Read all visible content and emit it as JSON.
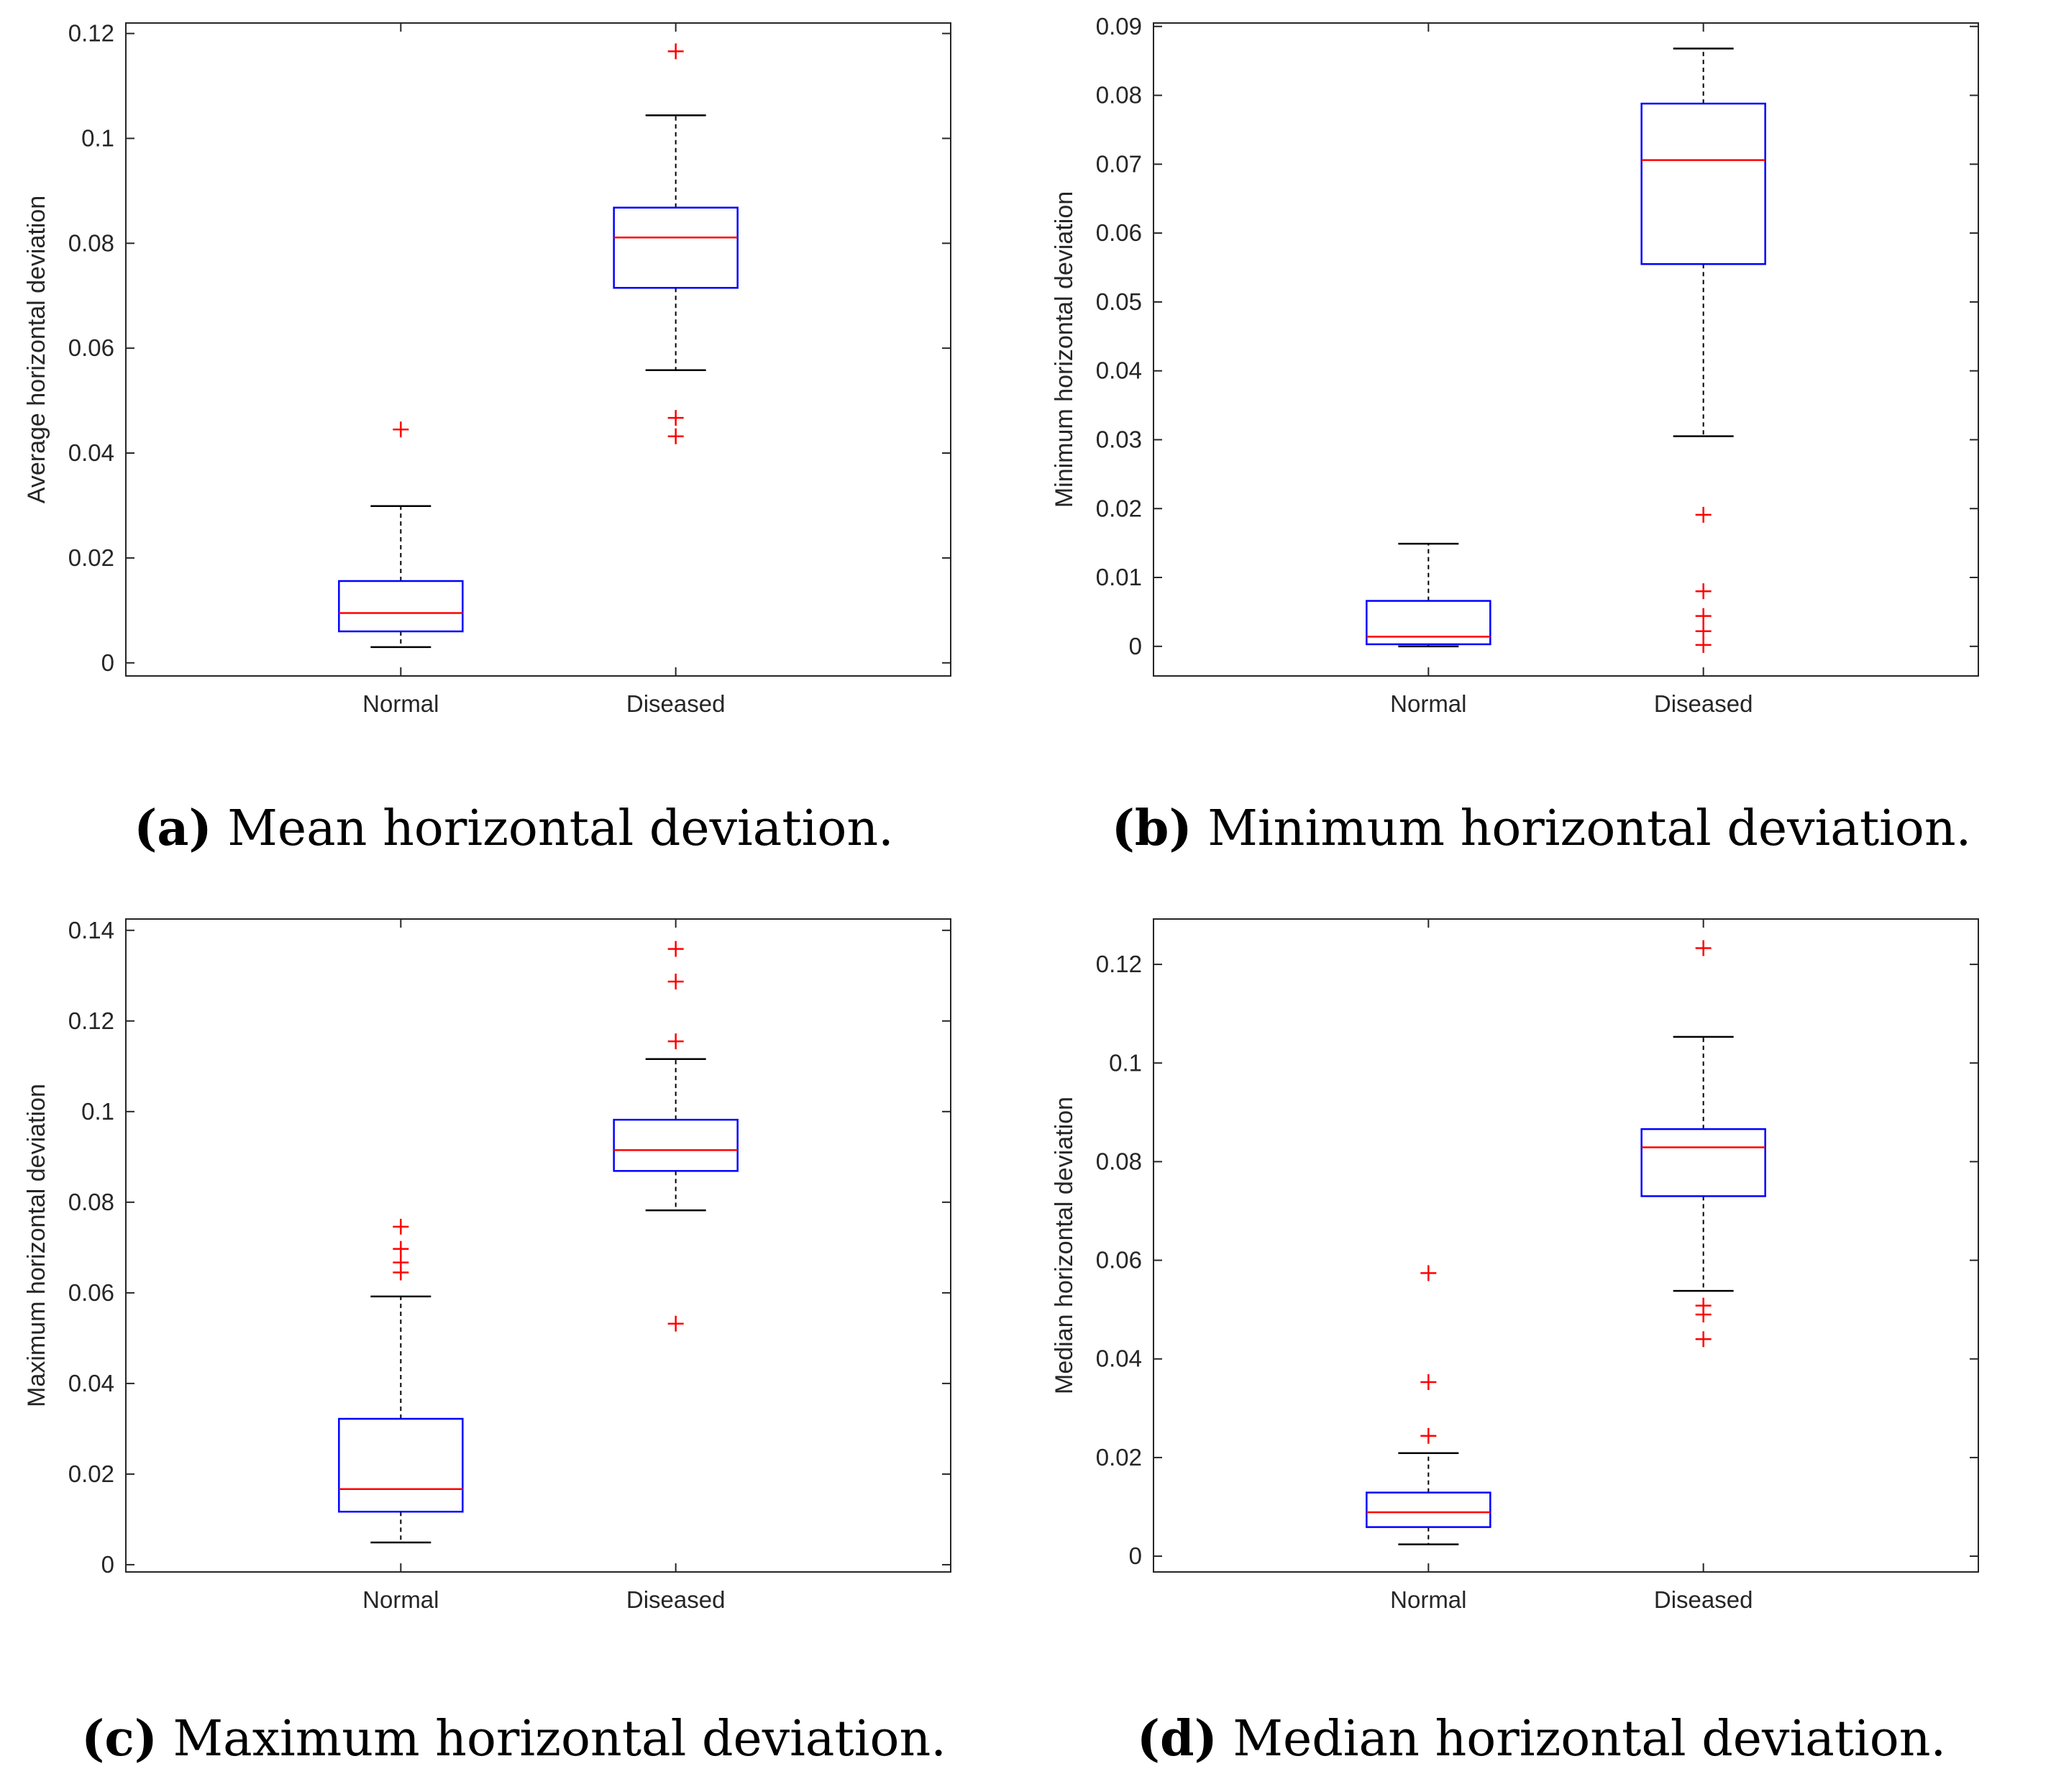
{
  "chart_data": [
    {
      "type": "boxplot",
      "panel_letter": "(a)",
      "caption": "Mean horizontal deviation.",
      "ylabel": "Average horizontal deviation",
      "xlabel": "",
      "ylim": [
        -0.0025,
        0.122
      ],
      "yticks": [
        0,
        0.02,
        0.04,
        0.06,
        0.08,
        0.1,
        0.12
      ],
      "ytick_labels": [
        "0",
        "0.02",
        "0.04",
        "0.06",
        "0.08",
        "0.1",
        "0.12"
      ],
      "categories": [
        "Normal",
        "Diseased"
      ],
      "boxes": [
        {
          "name": "Normal",
          "whisker_low": 0.003,
          "q1": 0.006,
          "median": 0.0095,
          "q3": 0.0156,
          "whisker_high": 0.0299,
          "outliers": [
            0.0445
          ]
        },
        {
          "name": "Diseased",
          "whisker_low": 0.0558,
          "q1": 0.0715,
          "median": 0.0811,
          "q3": 0.0868,
          "whisker_high": 0.1044,
          "outliers": [
            0.1166,
            0.0467,
            0.0432
          ]
        }
      ],
      "colors": {
        "box": "#0000ff",
        "median": "#ff0000",
        "outlier": "#ff0000",
        "whisker": "#000000"
      }
    },
    {
      "type": "boxplot",
      "panel_letter": "(b)",
      "caption": "Minimum horizontal deviation.",
      "ylabel": "Minimum horizontal deviation",
      "xlabel": "",
      "ylim": [
        -0.0043,
        0.0905
      ],
      "yticks": [
        0,
        0.01,
        0.02,
        0.03,
        0.04,
        0.05,
        0.06,
        0.07,
        0.08,
        0.09
      ],
      "ytick_labels": [
        "0",
        "0.01",
        "0.02",
        "0.03",
        "0.04",
        "0.05",
        "0.06",
        "0.07",
        "0.08",
        "0.09"
      ],
      "categories": [
        "Normal",
        "Diseased"
      ],
      "boxes": [
        {
          "name": "Normal",
          "whisker_low": 0.0,
          "q1": 0.0003,
          "median": 0.0014,
          "q3": 0.0066,
          "whisker_high": 0.0149,
          "outliers": []
        },
        {
          "name": "Diseased",
          "whisker_low": 0.0305,
          "q1": 0.0555,
          "median": 0.0706,
          "q3": 0.0788,
          "whisker_high": 0.0868,
          "outliers": [
            0.0191,
            0.008,
            0.0044,
            0.0022,
            0.0002
          ]
        }
      ],
      "colors": {
        "box": "#0000ff",
        "median": "#ff0000",
        "outlier": "#ff0000",
        "whisker": "#000000"
      }
    },
    {
      "type": "boxplot",
      "panel_letter": "(c)",
      "caption": "Maximum horizontal deviation.",
      "ylabel": "Maximum horizontal deviation",
      "xlabel": "",
      "ylim": [
        -0.0016,
        0.1425
      ],
      "yticks": [
        0,
        0.02,
        0.04,
        0.06,
        0.08,
        0.1,
        0.12,
        0.14
      ],
      "ytick_labels": [
        "0",
        "0.02",
        "0.04",
        "0.06",
        "0.08",
        "0.1",
        "0.12",
        "0.14"
      ],
      "categories": [
        "Normal",
        "Diseased"
      ],
      "boxes": [
        {
          "name": "Normal",
          "whisker_low": 0.0049,
          "q1": 0.0117,
          "median": 0.0167,
          "q3": 0.0322,
          "whisker_high": 0.0592,
          "outliers": [
            0.0746,
            0.0697,
            0.0667,
            0.0645
          ]
        },
        {
          "name": "Diseased",
          "whisker_low": 0.0782,
          "q1": 0.0869,
          "median": 0.0915,
          "q3": 0.0982,
          "whisker_high": 0.1116,
          "outliers": [
            0.1359,
            0.1287,
            0.1155,
            0.0532
          ]
        }
      ],
      "colors": {
        "box": "#0000ff",
        "median": "#ff0000",
        "outlier": "#ff0000",
        "whisker": "#000000"
      }
    },
    {
      "type": "boxplot",
      "panel_letter": "(d)",
      "caption": "Median horizontal deviation.",
      "ylabel": "Median horizontal deviation",
      "xlabel": "",
      "ylim": [
        -0.0032,
        0.1292
      ],
      "yticks": [
        0,
        0.02,
        0.04,
        0.06,
        0.08,
        0.1,
        0.12
      ],
      "ytick_labels": [
        "0",
        "0.02",
        "0.04",
        "0.06",
        "0.08",
        "0.1",
        "0.12"
      ],
      "categories": [
        "Normal",
        "Diseased"
      ],
      "boxes": [
        {
          "name": "Normal",
          "whisker_low": 0.0024,
          "q1": 0.0059,
          "median": 0.0089,
          "q3": 0.0129,
          "whisker_high": 0.0209,
          "outliers": [
            0.0574,
            0.0353,
            0.0244
          ]
        },
        {
          "name": "Diseased",
          "whisker_low": 0.0538,
          "q1": 0.073,
          "median": 0.0829,
          "q3": 0.0866,
          "whisker_high": 0.1053,
          "outliers": [
            0.1233,
            0.0508,
            0.049,
            0.044
          ]
        }
      ],
      "colors": {
        "box": "#0000ff",
        "median": "#ff0000",
        "outlier": "#ff0000",
        "whisker": "#000000"
      }
    }
  ]
}
